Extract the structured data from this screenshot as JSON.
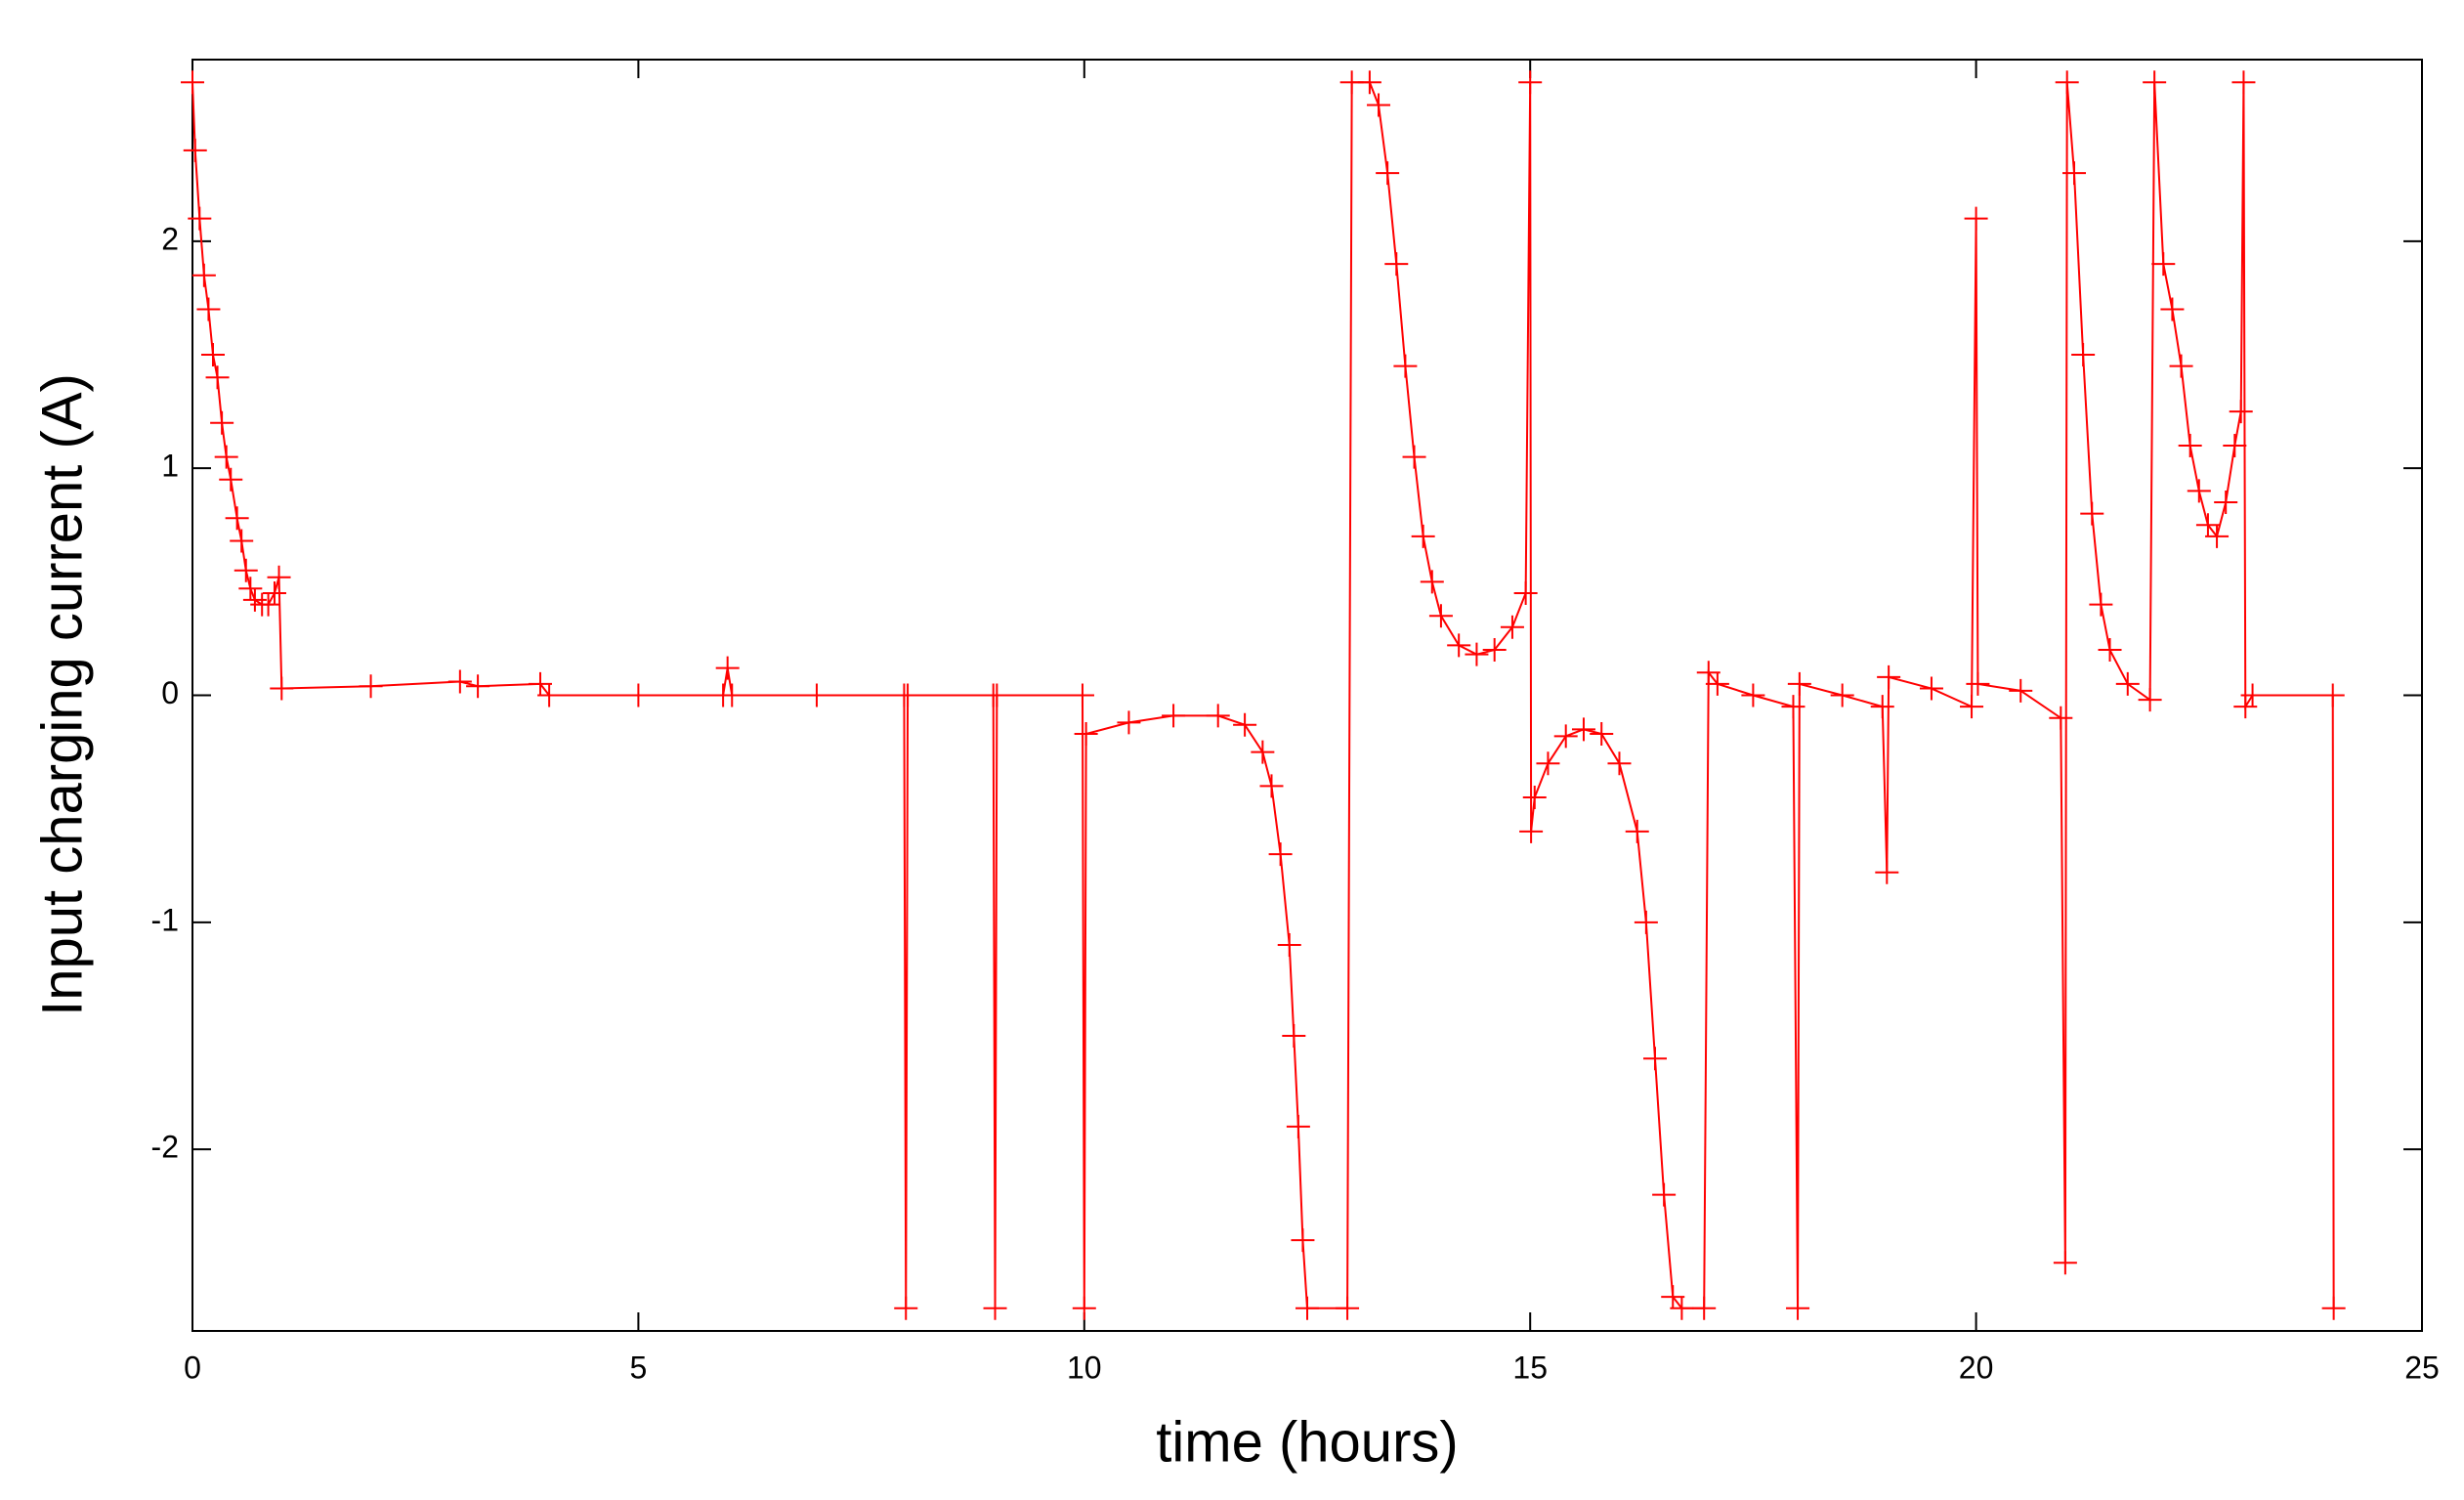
{
  "chart_data": {
    "type": "line",
    "x_label": "time (hours)",
    "y_label": "Input charging current (A)",
    "x": [
      0,
      0.03,
      0.08,
      0.13,
      0.18,
      0.23,
      0.28,
      0.33,
      0.38,
      0.43,
      0.5,
      0.55,
      0.6,
      0.65,
      0.7,
      0.78,
      0.85,
      0.92,
      0.97,
      1,
      2,
      3,
      3.2,
      3.9,
      4,
      5,
      5.95,
      6,
      6.05,
      7,
      7.98,
      8,
      8.02,
      8.98,
      9,
      9.02,
      9.98,
      10,
      10.02,
      10.5,
      11,
      11.5,
      11.8,
      12,
      12.1,
      12.2,
      12.3,
      12.35,
      12.4,
      12.45,
      12.5,
      12.95,
      13,
      13.2,
      13.3,
      13.4,
      13.5,
      13.6,
      13.7,
      13.8,
      13.9,
      14,
      14.2,
      14.4,
      14.6,
      14.8,
      14.95,
      15,
      15.01,
      15.05,
      15.2,
      15.4,
      15.6,
      15.8,
      16,
      16.2,
      16.3,
      16.4,
      16.5,
      16.6,
      16.7,
      16.95,
      17,
      17.1,
      17.5,
      17.95,
      18,
      18.02,
      18.5,
      18.95,
      19,
      19.02,
      19.5,
      19.95,
      20,
      20.02,
      20.5,
      20.95,
      21,
      21.02,
      21.1,
      21.2,
      21.3,
      21.4,
      21.5,
      21.7,
      21.95,
      22,
      22.1,
      22.2,
      22.3,
      22.4,
      22.5,
      22.6,
      22.7,
      22.8,
      22.9,
      22.97,
      23,
      23.02,
      23.1,
      24,
      24.01
    ],
    "series": [
      {
        "color": "#ff0000",
        "values": [
          2.7,
          2.4,
          2.1,
          1.85,
          1.7,
          1.5,
          1.4,
          1.2,
          1.05,
          0.95,
          0.78,
          0.68,
          0.55,
          0.47,
          0.42,
          0.4,
          0.4,
          0.45,
          0.52,
          0.03,
          0.04,
          0.06,
          0.04,
          0.05,
          0,
          0,
          0,
          0.12,
          0,
          0,
          0,
          -2.7,
          0,
          0,
          -2.7,
          0,
          0,
          -2.7,
          -0.17,
          -0.12,
          -0.09,
          -0.09,
          -0.13,
          -0.25,
          -0.4,
          -0.7,
          -1.1,
          -1.5,
          -1.9,
          -2.4,
          -2.7,
          -2.7,
          2.7,
          2.7,
          2.6,
          2.3,
          1.9,
          1.45,
          1.05,
          0.7,
          0.5,
          0.35,
          0.22,
          0.18,
          0.2,
          0.3,
          0.45,
          2.7,
          -0.6,
          -0.45,
          -0.3,
          -0.18,
          -0.15,
          -0.17,
          -0.3,
          -0.6,
          -1,
          -1.6,
          -2.2,
          -2.65,
          -2.7,
          -2.7,
          0.1,
          0.05,
          0,
          -0.05,
          -2.7,
          0.05,
          0,
          -0.05,
          -0.78,
          0.08,
          0.03,
          -0.05,
          2.1,
          0.05,
          0.02,
          -0.1,
          -2.5,
          2.7,
          2.3,
          1.5,
          0.8,
          0.4,
          0.2,
          0.05,
          -0.02,
          2.7,
          1.9,
          1.7,
          1.45,
          1.1,
          0.9,
          0.75,
          0.7,
          0.85,
          1.1,
          1.25,
          2.7,
          -0.05,
          0,
          0,
          -2.7
        ]
      }
    ],
    "xlim": [
      0,
      25
    ],
    "xticks": [
      0,
      5,
      10,
      15,
      20,
      25
    ],
    "ylim": [
      -2.8,
      2.8
    ],
    "yticks": [
      -2,
      -1,
      0,
      1,
      2
    ],
    "markers": "+"
  }
}
